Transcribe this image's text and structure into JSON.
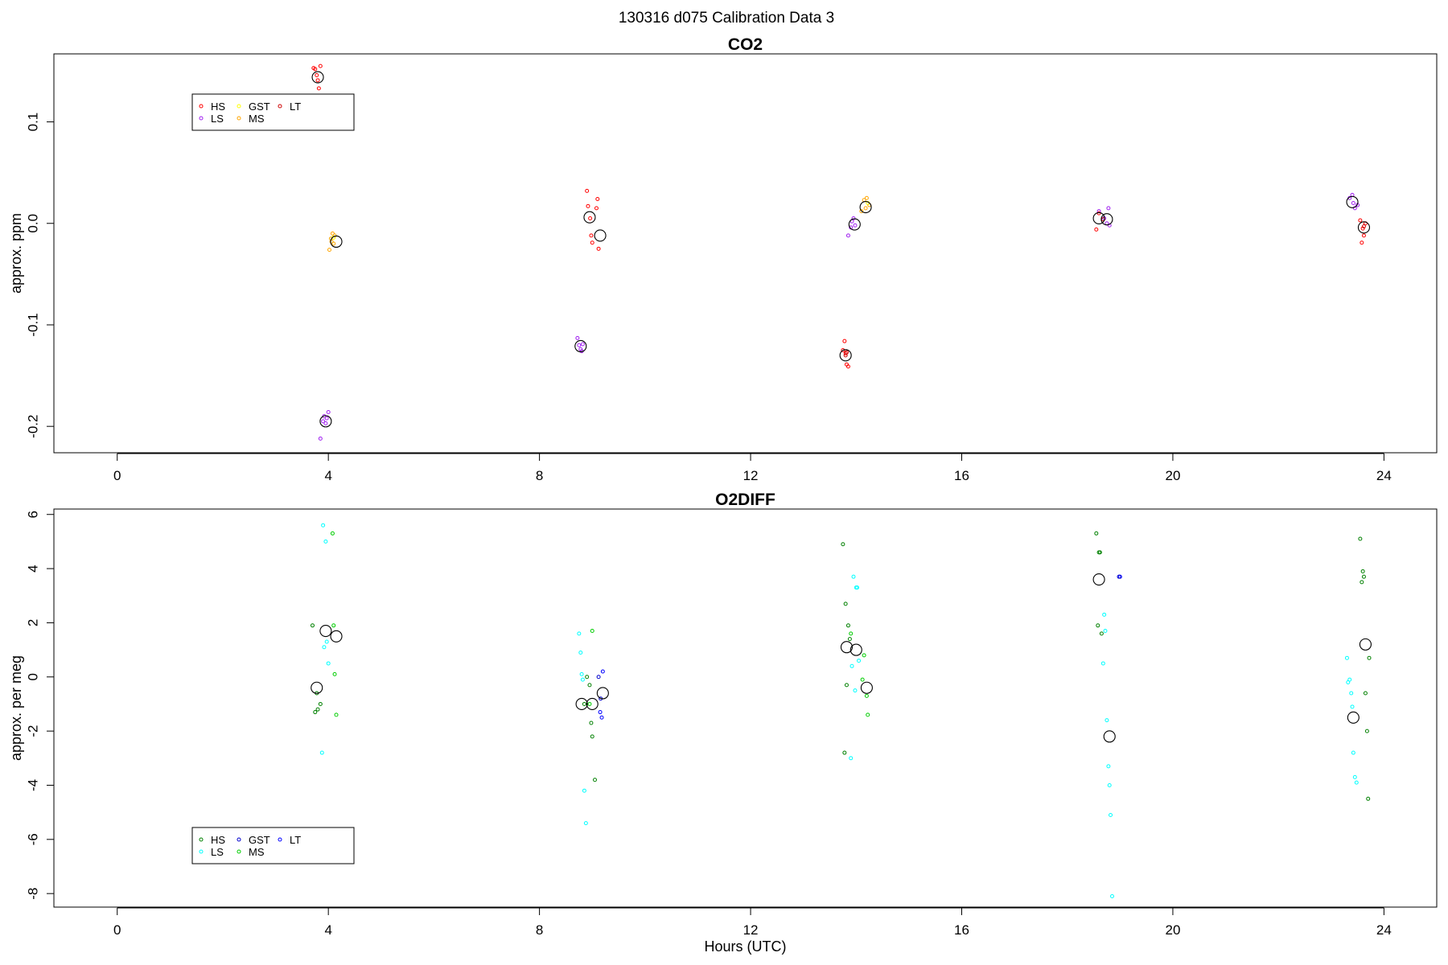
{
  "page_title": "130316   d075   Calibration Data 3",
  "chart_data": [
    {
      "type": "scatter",
      "title": "CO2",
      "xlabel": "",
      "ylabel": "approx. ppm",
      "xlim": [
        -1.2,
        25
      ],
      "ylim": [
        -0.226,
        0.167
      ],
      "xticks": [
        0,
        4,
        8,
        12,
        16,
        20,
        24
      ],
      "yticks": [
        0.1,
        0.0,
        -0.1,
        -0.2
      ],
      "ytick_labels": [
        "0.1",
        "0.0",
        "-0.1",
        "-0.2"
      ],
      "legend": {
        "placement": "top-left",
        "entries": [
          {
            "name": "HS",
            "color": "#ff0000"
          },
          {
            "name": "LS",
            "color": "#a020f0"
          },
          {
            "name": "GST",
            "color": "#ffff00"
          },
          {
            "name": "MS",
            "color": "#ffa500"
          },
          {
            "name": "LT",
            "color": "#cd0000"
          }
        ]
      },
      "series": [
        {
          "name": "HS",
          "color": "#ff0000",
          "points": [
            [
              3.75,
              0.152
            ],
            [
              3.8,
              0.141
            ],
            [
              3.82,
              0.133
            ],
            [
              3.78,
              0.146
            ],
            [
              3.72,
              0.153
            ],
            [
              3.85,
              0.155
            ],
            [
              8.9,
              0.032
            ],
            [
              8.92,
              0.017
            ],
            [
              8.96,
              0.005
            ],
            [
              8.98,
              -0.012
            ],
            [
              9.0,
              -0.019
            ],
            [
              9.1,
              0.024
            ],
            [
              9.12,
              -0.025
            ],
            [
              9.08,
              0.015
            ],
            [
              13.78,
              -0.116
            ],
            [
              13.8,
              -0.128
            ],
            [
              13.82,
              -0.139
            ],
            [
              13.85,
              -0.141
            ],
            [
              13.75,
              -0.125
            ],
            [
              23.55,
              0.003
            ],
            [
              23.6,
              -0.005
            ],
            [
              23.62,
              -0.012
            ],
            [
              23.58,
              -0.019
            ],
            [
              23.65,
              0.0
            ],
            [
              18.55,
              -0.006
            ],
            [
              18.6,
              0.01
            ]
          ]
        },
        {
          "name": "MS",
          "color": "#ffa500",
          "points": [
            [
              4.05,
              -0.015
            ],
            [
              4.08,
              -0.01
            ],
            [
              4.1,
              -0.02
            ],
            [
              4.12,
              -0.012
            ],
            [
              4.02,
              -0.026
            ],
            [
              4.06,
              -0.018
            ],
            [
              14.15,
              0.023
            ],
            [
              14.2,
              0.025
            ],
            [
              14.18,
              0.015
            ],
            [
              14.25,
              0.018
            ],
            [
              14.1,
              0.012
            ]
          ]
        },
        {
          "name": "LS",
          "color": "#a020f0",
          "points": [
            [
              3.9,
              -0.195
            ],
            [
              3.92,
              -0.19
            ],
            [
              3.95,
              -0.197
            ],
            [
              3.97,
              -0.192
            ],
            [
              4.0,
              -0.186
            ],
            [
              3.85,
              -0.212
            ],
            [
              8.72,
              -0.113
            ],
            [
              8.75,
              -0.12
            ],
            [
              8.78,
              -0.124
            ],
            [
              8.8,
              -0.126
            ],
            [
              8.82,
              -0.119
            ],
            [
              13.85,
              -0.012
            ],
            [
              13.9,
              -0.004
            ],
            [
              13.92,
              0.002
            ],
            [
              13.95,
              0.005
            ],
            [
              13.98,
              -0.002
            ],
            [
              18.6,
              0.012
            ],
            [
              18.7,
              0.005
            ],
            [
              18.75,
              0.0
            ],
            [
              18.8,
              -0.002
            ],
            [
              18.78,
              0.015
            ],
            [
              23.35,
              0.025
            ],
            [
              23.4,
              0.028
            ],
            [
              23.45,
              0.015
            ],
            [
              23.5,
              0.018
            ],
            [
              23.42,
              0.02
            ]
          ]
        },
        {
          "name": "LT",
          "color": "#cd0000",
          "points": [
            [
              13.8,
              -0.13
            ],
            [
              13.82,
              -0.127
            ],
            [
              18.68,
              0.004
            ],
            [
              23.62,
              -0.003
            ]
          ]
        },
        {
          "name": "GST",
          "color": "#ffff00",
          "points": [
            [
              4.1,
              -0.014
            ],
            [
              14.22,
              0.02
            ]
          ]
        },
        {
          "name": "mean",
          "color": "#000000",
          "points": [
            [
              3.8,
              0.144
            ],
            [
              3.95,
              -0.195
            ],
            [
              4.15,
              -0.018
            ],
            [
              8.78,
              -0.121
            ],
            [
              8.95,
              0.006
            ],
            [
              9.15,
              -0.012
            ],
            [
              13.8,
              -0.13
            ],
            [
              13.97,
              -0.001
            ],
            [
              14.18,
              0.016
            ],
            [
              18.6,
              0.005
            ],
            [
              18.75,
              0.004
            ],
            [
              23.4,
              0.021
            ],
            [
              23.62,
              -0.004
            ]
          ]
        }
      ]
    },
    {
      "type": "scatter",
      "title": "O2DIFF",
      "xlabel": "Hours (UTC)",
      "ylabel": "approx. per meg",
      "xlim": [
        -1.2,
        25
      ],
      "ylim": [
        -8.5,
        6.2
      ],
      "xticks": [
        0,
        4,
        8,
        12,
        16,
        20,
        24
      ],
      "yticks": [
        6,
        4,
        2,
        0,
        -2,
        -4,
        -6,
        -8
      ],
      "ytick_labels": [
        "6",
        "4",
        "2",
        "0",
        "-2",
        "-4",
        "-6",
        "-8"
      ],
      "legend": {
        "placement": "bottom-left",
        "entries": [
          {
            "name": "HS",
            "color": "#008000"
          },
          {
            "name": "LS",
            "color": "#00ffff"
          },
          {
            "name": "GST",
            "color": "#0000cd"
          },
          {
            "name": "MS",
            "color": "#00cd00"
          },
          {
            "name": "LT",
            "color": "#0000ff"
          }
        ]
      },
      "series": [
        {
          "name": "HS",
          "color": "#008000",
          "points": [
            [
              3.7,
              1.9
            ],
            [
              3.75,
              -1.3
            ],
            [
              3.8,
              -1.2
            ],
            [
              3.85,
              -1.0
            ],
            [
              3.78,
              -0.6
            ],
            [
              8.85,
              -1.0
            ],
            [
              8.9,
              0.0
            ],
            [
              8.95,
              -0.3
            ],
            [
              8.98,
              -1.7
            ],
            [
              9.0,
              -2.2
            ],
            [
              9.05,
              -3.8
            ],
            [
              13.75,
              4.9
            ],
            [
              13.8,
              2.7
            ],
            [
              13.82,
              -0.3
            ],
            [
              13.85,
              1.9
            ],
            [
              13.88,
              1.4
            ],
            [
              13.78,
              -2.8
            ],
            [
              18.55,
              5.3
            ],
            [
              18.6,
              4.6
            ],
            [
              18.62,
              4.6
            ],
            [
              18.58,
              1.9
            ],
            [
              18.65,
              1.6
            ],
            [
              23.55,
              5.1
            ],
            [
              23.6,
              3.9
            ],
            [
              23.62,
              3.7
            ],
            [
              23.58,
              3.5
            ],
            [
              23.65,
              -0.6
            ],
            [
              23.68,
              -2.0
            ],
            [
              23.7,
              -4.5
            ],
            [
              23.72,
              0.7
            ]
          ]
        },
        {
          "name": "MS",
          "color": "#00cd00",
          "points": [
            [
              4.1,
              1.9
            ],
            [
              4.12,
              0.1
            ],
            [
              4.15,
              -1.4
            ],
            [
              4.08,
              5.3
            ],
            [
              9.0,
              1.7
            ],
            [
              8.95,
              -1.0
            ],
            [
              14.15,
              0.8
            ],
            [
              14.2,
              -0.7
            ],
            [
              14.22,
              -1.4
            ],
            [
              14.12,
              -0.1
            ],
            [
              13.9,
              1.6
            ]
          ]
        },
        {
          "name": "LS",
          "color": "#00ffff",
          "points": [
            [
              3.9,
              5.6
            ],
            [
              3.95,
              5.0
            ],
            [
              3.92,
              1.1
            ],
            [
              3.97,
              1.3
            ],
            [
              4.0,
              0.5
            ],
            [
              3.88,
              -2.8
            ],
            [
              8.75,
              1.6
            ],
            [
              8.78,
              0.9
            ],
            [
              8.8,
              0.1
            ],
            [
              8.82,
              -0.1
            ],
            [
              8.85,
              -4.2
            ],
            [
              8.88,
              -5.4
            ],
            [
              13.95,
              3.7
            ],
            [
              14.0,
              3.3
            ],
            [
              14.02,
              3.3
            ],
            [
              13.92,
              0.4
            ],
            [
              13.98,
              -0.5
            ],
            [
              14.05,
              0.6
            ],
            [
              13.9,
              -3.0
            ],
            [
              18.7,
              2.3
            ],
            [
              18.72,
              1.7
            ],
            [
              18.68,
              0.5
            ],
            [
              18.75,
              -1.6
            ],
            [
              18.78,
              -3.3
            ],
            [
              18.8,
              -4.0
            ],
            [
              18.82,
              -5.1
            ],
            [
              18.85,
              -8.1
            ],
            [
              23.3,
              0.7
            ],
            [
              23.35,
              -0.1
            ],
            [
              23.38,
              -0.6
            ],
            [
              23.4,
              -1.1
            ],
            [
              23.42,
              -2.8
            ],
            [
              23.45,
              -3.7
            ],
            [
              23.48,
              -3.9
            ],
            [
              23.32,
              -0.2
            ]
          ]
        },
        {
          "name": "LT",
          "color": "#0000ff",
          "points": [
            [
              9.15,
              -1.3
            ],
            [
              9.18,
              -1.5
            ],
            [
              9.2,
              0.2
            ],
            [
              19.0,
              3.7
            ]
          ]
        },
        {
          "name": "GST",
          "color": "#0000cd",
          "points": [
            [
              9.12,
              0.0
            ],
            [
              9.16,
              -0.8
            ],
            [
              18.98,
              3.7
            ]
          ]
        },
        {
          "name": "mean",
          "color": "#000000",
          "points": [
            [
              3.78,
              -0.4
            ],
            [
              3.95,
              1.7
            ],
            [
              4.15,
              1.5
            ],
            [
              8.8,
              -1.0
            ],
            [
              9.0,
              -1.0
            ],
            [
              9.2,
              -0.6
            ],
            [
              13.82,
              1.1
            ],
            [
              14.0,
              1.0
            ],
            [
              14.2,
              -0.4
            ],
            [
              18.6,
              3.6
            ],
            [
              18.8,
              -2.2
            ],
            [
              23.42,
              -1.5
            ],
            [
              23.65,
              1.2
            ]
          ]
        }
      ]
    }
  ]
}
